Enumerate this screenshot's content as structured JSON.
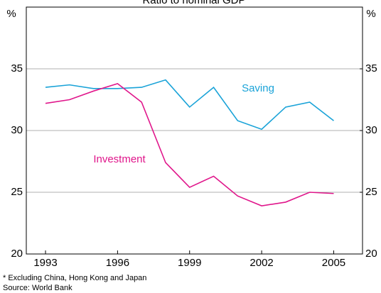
{
  "chart_data": {
    "type": "line",
    "title": "Ratio to nominal GDP",
    "y_label": "%",
    "y2_label": "%",
    "x": [
      1993,
      1994,
      1995,
      1996,
      1997,
      1998,
      1999,
      2000,
      2001,
      2002,
      2003,
      2004,
      2005
    ],
    "series": [
      {
        "name": "Saving",
        "color": "#1aa3d8",
        "values": [
          33.5,
          33.7,
          33.4,
          33.4,
          33.5,
          34.1,
          31.9,
          33.5,
          30.8,
          30.1,
          31.9,
          32.3,
          30.8
        ]
      },
      {
        "name": "Investment",
        "color": "#e0168b",
        "values": [
          32.2,
          32.5,
          33.2,
          33.8,
          32.3,
          27.4,
          25.4,
          26.3,
          24.7,
          23.9,
          24.2,
          25.0,
          24.9
        ]
      }
    ],
    "xlim": [
      1992.2,
      2006.2
    ],
    "xticks": [
      1993,
      1996,
      1999,
      2002,
      2005
    ],
    "ylim": [
      20,
      40
    ],
    "yticks": [
      20,
      25,
      30,
      35
    ],
    "y2lim": [
      20,
      40
    ],
    "y2ticks": [
      20,
      25,
      30,
      35
    ],
    "grid": true,
    "notes": [
      "*   Excluding China, Hong Kong and Japan",
      "Source: World Bank"
    ]
  }
}
